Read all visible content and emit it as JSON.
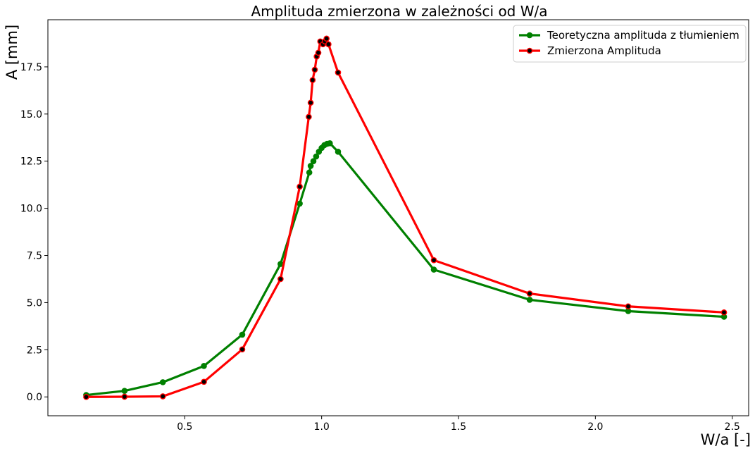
{
  "chart_data": {
    "type": "line",
    "title": "Amplituda zmierzona w zależności od W/a",
    "xlabel": "W/a [-]",
    "ylabel": "A [mm]",
    "xlim": [
      0.0,
      2.56
    ],
    "ylim": [
      -1.0,
      20.0
    ],
    "x_ticks": [
      0.5,
      1.0,
      1.5,
      2.0,
      2.5
    ],
    "x_tick_labels": [
      "0.5",
      "1.0",
      "1.5",
      "2.0",
      "2.5"
    ],
    "y_ticks": [
      0.0,
      2.5,
      5.0,
      7.5,
      10.0,
      12.5,
      15.0,
      17.5
    ],
    "y_tick_labels": [
      "0.0",
      "2.5",
      "5.0",
      "7.5",
      "10.0",
      "12.5",
      "15.0",
      "17.5"
    ],
    "grid": false,
    "legend_position": "top-right",
    "series": [
      {
        "name": "Teoretyczna amplituda z tłumieniem",
        "color": "#008000",
        "marker_face": "#008000",
        "points": [
          [
            0.14,
            0.1
          ],
          [
            0.28,
            0.32
          ],
          [
            0.42,
            0.78
          ],
          [
            0.57,
            1.64
          ],
          [
            0.71,
            3.3
          ],
          [
            0.85,
            7.05
          ],
          [
            0.92,
            10.25
          ],
          [
            0.955,
            11.9
          ],
          [
            0.96,
            12.25
          ],
          [
            0.97,
            12.5
          ],
          [
            0.98,
            12.75
          ],
          [
            0.99,
            13.0
          ],
          [
            1.0,
            13.2
          ],
          [
            1.01,
            13.35
          ],
          [
            1.02,
            13.42
          ],
          [
            1.03,
            13.45
          ],
          [
            1.06,
            13.0
          ],
          [
            1.41,
            6.75
          ],
          [
            1.76,
            5.15
          ],
          [
            2.12,
            4.55
          ],
          [
            2.47,
            4.25
          ]
        ]
      },
      {
        "name": "Zmierzona Amplituda",
        "color": "#ff0000",
        "marker_face": "#000000",
        "points": [
          [
            0.14,
            0.0
          ],
          [
            0.28,
            0.01
          ],
          [
            0.42,
            0.03
          ],
          [
            0.57,
            0.8
          ],
          [
            0.71,
            2.52
          ],
          [
            0.85,
            6.25
          ],
          [
            0.92,
            11.15
          ],
          [
            0.953,
            14.85
          ],
          [
            0.96,
            15.6
          ],
          [
            0.967,
            16.8
          ],
          [
            0.975,
            17.35
          ],
          [
            0.982,
            18.05
          ],
          [
            0.988,
            18.25
          ],
          [
            0.995,
            18.85
          ],
          [
            1.005,
            18.7
          ],
          [
            1.012,
            18.85
          ],
          [
            1.018,
            19.0
          ],
          [
            1.025,
            18.7
          ],
          [
            1.06,
            17.2
          ],
          [
            1.41,
            7.25
          ],
          [
            1.76,
            5.48
          ],
          [
            2.12,
            4.8
          ],
          [
            2.47,
            4.48
          ]
        ]
      }
    ]
  }
}
